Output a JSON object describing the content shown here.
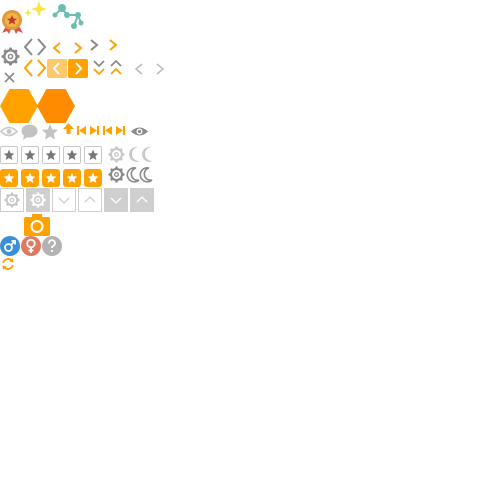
{
  "colors": {
    "orange": "#ffa200",
    "deep_orange": "#ff8c00",
    "light_orange": "#ffc868",
    "gray": "#a9a9a9",
    "light_gray": "#c8c8c8",
    "teal": "#6dbcb0",
    "yellow": "#f7e542",
    "blue": "#3b8ed8",
    "salmon": "#e07a5f",
    "question_gray": "#b3b3b3"
  },
  "icons": [
    "medal-icon",
    "sparkle-icon",
    "molecule-icon",
    "gear-icon",
    "close-icon",
    "code-brackets-icon",
    "chevron-left-icon",
    "chevron-right-icon",
    "chevron-double-down-icon",
    "chevron-double-up-icon",
    "hexagon-icon",
    "eye-icon",
    "speech-bubble-icon",
    "star-icon",
    "arrow-up-icon",
    "skip-back-icon",
    "skip-forward-icon",
    "moon-icon",
    "ribbon-icon",
    "camera-icon",
    "male-icon",
    "female-icon",
    "question-icon",
    "refresh-icon"
  ],
  "rating": {
    "empty_count": 5,
    "filled_count": 5
  }
}
